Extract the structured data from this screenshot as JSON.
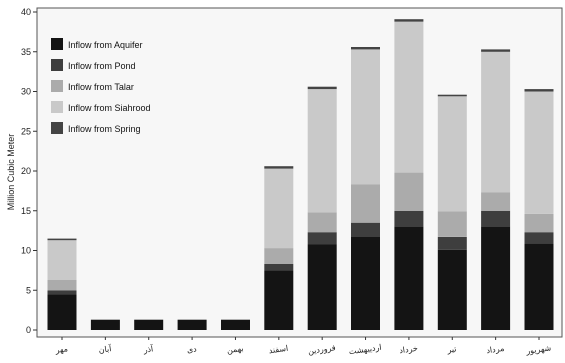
{
  "chart_data": {
    "type": "bar",
    "stacked": true,
    "ylabel": "Million Cubic Meter",
    "xlabel": "",
    "ylim": [
      0,
      40
    ],
    "yticks": [
      0,
      5,
      10,
      15,
      20,
      25,
      30,
      35,
      40
    ],
    "grid": false,
    "legend_position": "top-left",
    "categories": [
      "مهر",
      "آبان",
      "آذر",
      "دی",
      "بهمن",
      "اسفند",
      "فروردین",
      "اردیبهشت",
      "خرداد",
      "تیر",
      "مرداد",
      "شهریور"
    ],
    "series": [
      {
        "name": "Inflow from Aquifer",
        "color": "#141414",
        "values": [
          4.5,
          1.3,
          1.3,
          1.3,
          1.3,
          7.5,
          10.8,
          11.7,
          13.0,
          10.1,
          13.0,
          10.9
        ]
      },
      {
        "name": "Inflow from Pond",
        "color": "#3e3e3e",
        "values": [
          0.5,
          0,
          0,
          0,
          0,
          0.8,
          1.5,
          1.8,
          2.0,
          1.6,
          2.0,
          1.4
        ]
      },
      {
        "name": "Inflow from Talar",
        "color": "#ababab",
        "values": [
          1.3,
          0,
          0,
          0,
          0,
          2.0,
          2.5,
          4.8,
          4.8,
          3.2,
          2.3,
          2.3
        ]
      },
      {
        "name": "Inflow from Siahrood",
        "color": "#c9c9c9",
        "values": [
          5.0,
          0,
          0,
          0,
          0,
          10.0,
          15.5,
          17.0,
          19.0,
          14.5,
          17.7,
          15.4
        ]
      },
      {
        "name": "Inflow from Spring",
        "color": "#444444",
        "values": [
          0.2,
          0,
          0,
          0,
          0,
          0.3,
          0.3,
          0.3,
          0.3,
          0.2,
          0.3,
          0.3
        ]
      }
    ]
  }
}
